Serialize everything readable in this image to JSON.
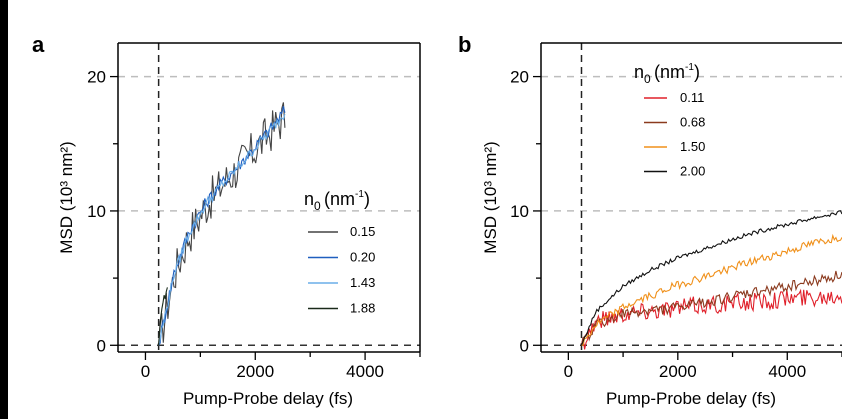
{
  "chart_data": [
    {
      "panel": "a",
      "type": "line",
      "xlabel": "Pump-Probe delay (fs)",
      "ylabel": "MSD (10³ nm²)",
      "xlim": [
        -500,
        5000
      ],
      "ylim": [
        -0.5,
        22.5
      ],
      "xticks": [
        0,
        2000,
        4000
      ],
      "yticks": [
        0,
        10,
        20
      ],
      "grid": "dashed-horizontal",
      "vline_x": 240,
      "legend": {
        "title_main": "n",
        "title_sub": "0",
        "title_unit": "(nm",
        "title_sup": "-1",
        "title_close": ")",
        "placement": "right-center"
      },
      "series": [
        {
          "name": "0.15",
          "color": "#444444",
          "noise": 1.6,
          "x": [
            240,
            520,
            800,
            1100,
            1400,
            1700,
            2000,
            2300,
            2540
          ],
          "y": [
            0,
            5.2,
            8.3,
            10.4,
            12.0,
            13.3,
            14.6,
            16.0,
            17.1
          ]
        },
        {
          "name": "0.20",
          "color": "#1f5fbf",
          "noise": 0.5,
          "x": [
            240,
            520,
            800,
            1100,
            1400,
            1700,
            2000,
            2300,
            2540
          ],
          "y": [
            0,
            5.4,
            8.5,
            10.6,
            12.1,
            13.4,
            14.8,
            16.2,
            17.5
          ]
        },
        {
          "name": "1.43",
          "color": "#6aaee8",
          "noise": 0.4,
          "x": [
            240,
            520,
            800,
            1100,
            1400,
            1700,
            2000,
            2300,
            2540
          ],
          "y": [
            0,
            5.3,
            8.4,
            10.5,
            12.0,
            13.3,
            14.7,
            16.1,
            17.3
          ]
        },
        {
          "name": "1.88",
          "color": "#1a2a1a",
          "noise": 0.3,
          "x": [
            240,
            300,
            400
          ],
          "y": [
            0,
            3.0,
            4.2
          ]
        }
      ]
    },
    {
      "panel": "b",
      "type": "line",
      "xlabel": "Pump-Probe delay (fs)",
      "ylabel": "MSD (10³ nm²)",
      "xlim": [
        -500,
        5000
      ],
      "ylim": [
        -0.5,
        22.5
      ],
      "xticks": [
        0,
        2000,
        4000
      ],
      "yticks": [
        0,
        10,
        20
      ],
      "grid": "dashed-horizontal",
      "vline_x": 240,
      "legend": {
        "title_main": "n",
        "title_sub": "0",
        "title_unit": "(nm",
        "title_sup": "-1",
        "title_close": ")",
        "placement": "top-left"
      },
      "series": [
        {
          "name": "0.11",
          "color": "#e0202a",
          "noise": 0.7,
          "x": [
            240,
            500,
            1000,
            1500,
            2000,
            2500,
            3000,
            3500,
            4000,
            4500,
            5000
          ],
          "y": [
            0,
            1.8,
            2.4,
            2.6,
            2.8,
            3.0,
            3.1,
            3.3,
            3.5,
            3.6,
            3.8
          ]
        },
        {
          "name": "0.68",
          "color": "#8b3a1e",
          "noise": 0.4,
          "x": [
            240,
            500,
            1000,
            1500,
            2000,
            2500,
            3000,
            3500,
            4000,
            4500,
            5000
          ],
          "y": [
            0,
            1.5,
            2.3,
            2.6,
            2.8,
            3.2,
            3.6,
            4.0,
            4.4,
            4.8,
            5.3
          ]
        },
        {
          "name": "1.50",
          "color": "#f0901a",
          "noise": 0.3,
          "x": [
            240,
            500,
            1000,
            1500,
            2000,
            2500,
            3000,
            3500,
            4000,
            4500,
            5000
          ],
          "y": [
            0,
            1.5,
            2.8,
            3.7,
            4.5,
            5.1,
            5.8,
            6.4,
            7.0,
            7.6,
            8.1
          ]
        },
        {
          "name": "2.00",
          "color": "#111111",
          "noise": 0.15,
          "x": [
            240,
            500,
            1000,
            1500,
            2000,
            2500,
            3000,
            3500,
            4000,
            4500,
            5000
          ],
          "y": [
            0,
            2.5,
            4.4,
            5.6,
            6.5,
            7.2,
            7.9,
            8.5,
            9.0,
            9.5,
            9.9
          ]
        }
      ]
    }
  ]
}
